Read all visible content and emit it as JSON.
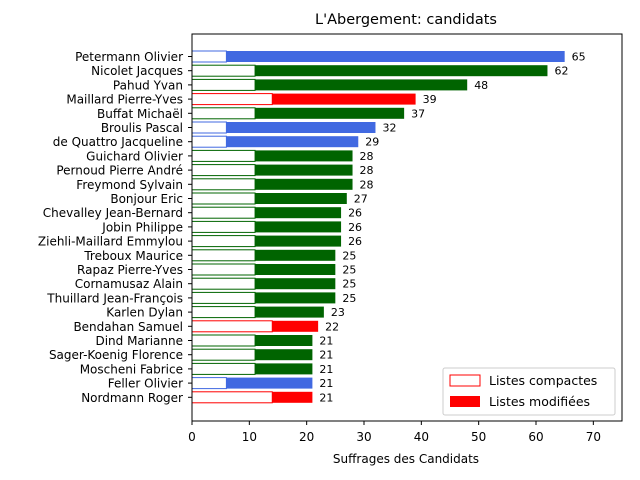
{
  "chart_data": {
    "type": "bar",
    "orientation": "horizontal",
    "title": "L'Abergement: candidats",
    "xlabel": "Suffrages des Candidats",
    "ylabel": "",
    "xlim": [
      0,
      75
    ],
    "xticks": [
      0,
      10,
      20,
      30,
      40,
      50,
      60,
      70
    ],
    "grid": false,
    "legend_position": "bottom-right",
    "legend": [
      {
        "label": "Listes compactes",
        "style": "outline"
      },
      {
        "label": "Listes modifiées",
        "style": "filled"
      }
    ],
    "categories": [
      "Petermann Olivier",
      "Nicolet Jacques",
      "Pahud Yvan",
      "Maillard Pierre-Yves",
      "Buffat Michaël",
      "Broulis Pascal",
      "de Quattro Jacqueline",
      "Guichard Olivier",
      "Pernoud Pierre André",
      "Freymond Sylvain",
      "Bonjour Eric",
      "Chevalley Jean-Bernard",
      "Jobin Philippe",
      "Ziehli-Maillard Emmylou",
      "Treboux Maurice",
      "Rapaz Pierre-Yves",
      "Cornamusaz Alain",
      "Thuillard Jean-François",
      "Karlen Dylan",
      "Bendahan Samuel",
      "Dind Marianne",
      "Sager-Koenig Florence",
      "Moscheni Fabrice",
      "Feller Olivier",
      "Nordmann Roger"
    ],
    "series": [
      {
        "name": "Listes compactes",
        "values": [
          6,
          11,
          11,
          14,
          11,
          6,
          6,
          11,
          11,
          11,
          11,
          11,
          11,
          11,
          11,
          11,
          11,
          11,
          11,
          14,
          11,
          11,
          11,
          6,
          14
        ]
      },
      {
        "name": "Listes modifiées",
        "values": [
          59,
          51,
          37,
          25,
          26,
          26,
          23,
          17,
          17,
          17,
          16,
          15,
          15,
          15,
          14,
          14,
          14,
          14,
          12,
          8,
          10,
          10,
          10,
          15,
          7
        ]
      }
    ],
    "totals": [
      65,
      62,
      48,
      39,
      37,
      32,
      29,
      28,
      28,
      28,
      27,
      26,
      26,
      26,
      25,
      25,
      25,
      25,
      23,
      22,
      21,
      21,
      21,
      21,
      21
    ],
    "colors": [
      "#4169e1",
      "#006400",
      "#006400",
      "#ff0000",
      "#006400",
      "#4169e1",
      "#4169e1",
      "#006400",
      "#006400",
      "#006400",
      "#006400",
      "#006400",
      "#006400",
      "#006400",
      "#006400",
      "#006400",
      "#006400",
      "#006400",
      "#006400",
      "#ff0000",
      "#006400",
      "#006400",
      "#006400",
      "#4169e1",
      "#ff0000"
    ],
    "legend_color": "#ff0000"
  }
}
